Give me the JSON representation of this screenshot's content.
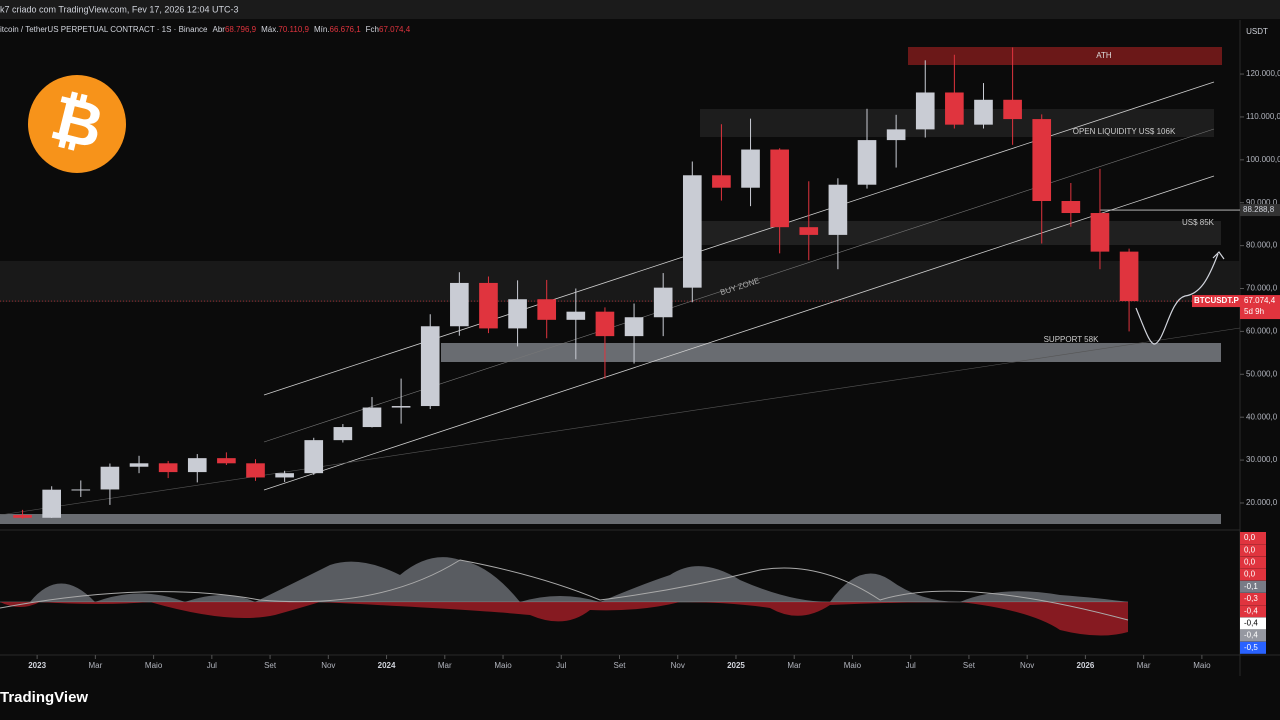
{
  "header": {
    "credit": "k7 criado com TradingView.com, Fev 17, 2026 12:04 UTC-3",
    "symbol": "itcoin / TetherUS PERPETUAL CONTRACT · 1S · Binance",
    "ohlc": [
      {
        "key": "Abr",
        "val": "68.796,9"
      },
      {
        "key": "Máx.",
        "val": "70.110,9"
      },
      {
        "key": "Mín.",
        "val": "66.676,1"
      },
      {
        "key": "Fch",
        "val": "67.074,4"
      }
    ],
    "currency": "USDT",
    "brand": "TradingView"
  },
  "chart_data": {
    "type": "candlestick",
    "x": [
      "2022-12",
      "2023-01",
      "2023-02",
      "2023-03",
      "2023-04",
      "2023-05",
      "2023-06",
      "2023-07",
      "2023-08",
      "2023-09",
      "2023-10",
      "2023-11",
      "2023-12",
      "2024-01",
      "2024-02",
      "2024-03",
      "2024-04",
      "2024-05",
      "2024-06",
      "2024-07",
      "2024-08",
      "2024-09",
      "2024-10",
      "2024-11",
      "2024-12",
      "2025-01",
      "2025-02",
      "2025-03",
      "2025-04",
      "2025-05",
      "2025-06",
      "2025-07",
      "2025-08",
      "2025-09",
      "2025-10",
      "2025-11",
      "2025-12",
      "2026-01",
      "2026-02"
    ],
    "open": [
      17200,
      16550,
      23100,
      23150,
      28450,
      29250,
      27200,
      30450,
      29250,
      25950,
      26950,
      34650,
      37700,
      42250,
      42600,
      61200,
      71300,
      60700,
      67500,
      62700,
      64600,
      58900,
      63300,
      70200,
      96400,
      93500,
      102400,
      84300,
      82500,
      94200,
      104600,
      107100,
      115700,
      108200,
      114000,
      109500,
      90400,
      87600,
      78600
    ],
    "high": [
      18400,
      23900,
      25250,
      29200,
      31000,
      29800,
      31400,
      31800,
      30200,
      27500,
      35200,
      38400,
      44700,
      49000,
      64000,
      73800,
      72800,
      71900,
      72000,
      70000,
      65600,
      66500,
      73600,
      99600,
      108300,
      109600,
      102700,
      95000,
      95700,
      111900,
      110500,
      123200,
      124500,
      117900,
      126200,
      110600,
      94600,
      97900,
      79300
    ],
    "low": [
      16300,
      16500,
      21400,
      19550,
      26950,
      25800,
      24800,
      28850,
      25150,
      24900,
      26550,
      34100,
      37600,
      38500,
      41900,
      59000,
      59600,
      56500,
      58400,
      53500,
      49000,
      52500,
      58900,
      66800,
      90500,
      89200,
      78200,
      76600,
      74500,
      93300,
      98200,
      105200,
      107300,
      107300,
      103500,
      80500,
      84400,
      74500,
      60000
    ],
    "close": [
      16550,
      23100,
      23150,
      28450,
      29250,
      27200,
      30450,
      29250,
      25950,
      26950,
      34650,
      37700,
      42250,
      42600,
      61200,
      71300,
      60700,
      67500,
      62700,
      64600,
      58900,
      63300,
      70200,
      96400,
      93500,
      102400,
      84300,
      82500,
      94200,
      104600,
      107100,
      115700,
      108200,
      114000,
      109500,
      90400,
      87600,
      78600,
      67074.4
    ],
    "up_color": "#c9ccd4",
    "down_color": "#e0343e",
    "xlim": [
      "2022-12",
      "2026-06"
    ],
    "xticks": [
      {
        "value": "2023-01",
        "label": "2023"
      },
      {
        "value": "2023-03",
        "label": "Mar"
      },
      {
        "value": "2023-05",
        "label": "Maio"
      },
      {
        "value": "2023-07",
        "label": "Jul"
      },
      {
        "value": "2023-09",
        "label": "Set"
      },
      {
        "value": "2023-11",
        "label": "Nov"
      },
      {
        "value": "2024-01",
        "label": "2024"
      },
      {
        "value": "2024-03",
        "label": "Mar"
      },
      {
        "value": "2024-05",
        "label": "Maio"
      },
      {
        "value": "2024-07",
        "label": "Jul"
      },
      {
        "value": "2024-09",
        "label": "Set"
      },
      {
        "value": "2024-11",
        "label": "Nov"
      },
      {
        "value": "2025-01",
        "label": "2025"
      },
      {
        "value": "2025-03",
        "label": "Mar"
      },
      {
        "value": "2025-05",
        "label": "Maio"
      },
      {
        "value": "2025-07",
        "label": "Jul"
      },
      {
        "value": "2025-09",
        "label": "Set"
      },
      {
        "value": "2025-11",
        "label": "Nov"
      },
      {
        "value": "2026-01",
        "label": "2026"
      },
      {
        "value": "2026-03",
        "label": "Mar"
      },
      {
        "value": "2026-05",
        "label": "Maio"
      }
    ],
    "ylim": [
      13700,
      132600
    ],
    "yticks": [
      {
        "value": 20000,
        "label": "20.000,0"
      },
      {
        "value": 30000,
        "label": "30.000,0"
      },
      {
        "value": 40000,
        "label": "40.000,0"
      },
      {
        "value": 50000,
        "label": "50.000,0"
      },
      {
        "value": 60000,
        "label": "60.000,0"
      },
      {
        "value": 70000,
        "label": "70.000,0"
      },
      {
        "value": 80000,
        "label": "80.000,0"
      },
      {
        "value": 90000,
        "label": "90.000,0"
      },
      {
        "value": 100000,
        "label": "100.000,0"
      },
      {
        "value": 110000,
        "label": "110.000,0"
      },
      {
        "value": 120000,
        "label": "120.000,0"
      }
    ],
    "level": {
      "value": 88288.8,
      "label": "88.288,8"
    },
    "last_price": {
      "value": 67074.4,
      "label": "67.074,4",
      "tag": "BTCUSDT.P",
      "countdown": "5d 9h"
    },
    "annotations": {
      "ath": "ATH",
      "liquidity": "OPEN LIQUIDITY US$ 106K",
      "level85": "US$ 85K",
      "buy": "BUY ZONE",
      "support": "SUPPORT 58K"
    },
    "oscillator_labels": [
      {
        "text": "0,0",
        "color": "#e0343e"
      },
      {
        "text": "0,0",
        "color": "#e0343e"
      },
      {
        "text": "0,0",
        "color": "#e0343e"
      },
      {
        "text": "0,0",
        "color": "#e0343e"
      },
      {
        "text": "-0,1",
        "color": "#787b86"
      },
      {
        "text": "-0,3",
        "color": "#e0343e"
      },
      {
        "text": "-0,4",
        "color": "#e0343e"
      },
      {
        "text": "-0,4",
        "color": "#ffffff"
      },
      {
        "text": "-0,4",
        "color": "#9598a1"
      },
      {
        "text": "-0,5",
        "color": "#2962ff"
      }
    ]
  }
}
